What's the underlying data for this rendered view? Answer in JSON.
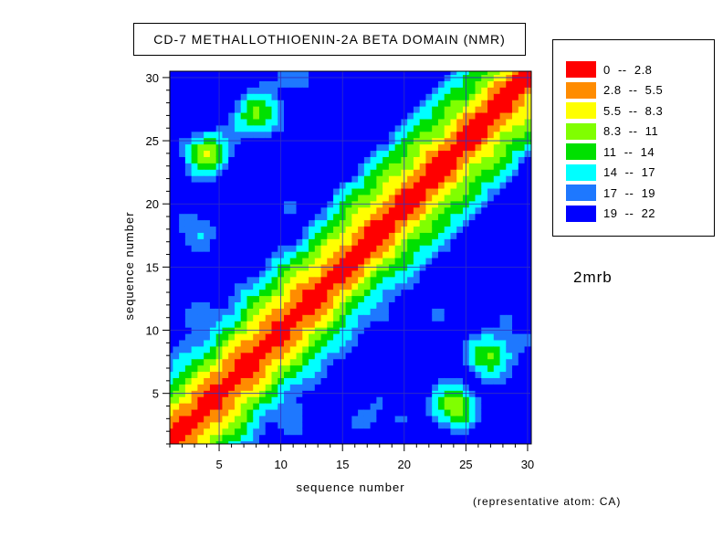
{
  "chart_data": {
    "type": "heatmap",
    "title": "CD-7 METHALLOTHIOENIN-2A BETA DOMAIN (NMR)",
    "xlabel": "sequence number",
    "ylabel": "sequence number",
    "xlim": [
      1,
      30
    ],
    "ylim": [
      1,
      30
    ],
    "xticks": [
      5,
      10,
      15,
      20,
      25,
      30
    ],
    "yticks": [
      5,
      10,
      15,
      20,
      25,
      30
    ],
    "grid": true,
    "legend_placement": "right",
    "levels": [
      {
        "label": "0  --  2.8",
        "min": 0,
        "max": 2.8,
        "color": "#ff0000"
      },
      {
        "label": "2.8  --  5.5",
        "min": 2.8,
        "max": 5.5,
        "color": "#ff8c00"
      },
      {
        "label": "5.5  --  8.3",
        "min": 5.5,
        "max": 8.3,
        "color": "#ffff00"
      },
      {
        "label": "8.3  --  11",
        "min": 8.3,
        "max": 11,
        "color": "#80ff00"
      },
      {
        "label": "11  --  14",
        "min": 11,
        "max": 14,
        "color": "#00e000"
      },
      {
        "label": "14  --  17",
        "min": 14,
        "max": 17,
        "color": "#00ffff"
      },
      {
        "label": "17  --  19",
        "min": 17,
        "max": 19,
        "color": "#1e78ff"
      },
      {
        "label": "19  --  22",
        "min": 19,
        "max": 22,
        "color": "#0000ff"
      }
    ],
    "wells": [
      {
        "x": 11,
        "y": 23,
        "value": 19.5
      },
      {
        "x": 11,
        "y": 19,
        "value": 19.5
      },
      {
        "x": 23,
        "y": 11,
        "value": 19.5
      },
      {
        "x": 19,
        "y": 11,
        "value": 19.5
      },
      {
        "x": 11,
        "y": 3,
        "value": 18
      },
      {
        "x": 3,
        "y": 11,
        "value": 18
      },
      {
        "x": 1,
        "y": 29,
        "value": 19.5
      },
      {
        "x": 29,
        "y": 1,
        "value": 19.5
      },
      {
        "x": 18,
        "y": 3,
        "value": 17
      },
      {
        "x": 3,
        "y": 18,
        "value": 17
      },
      {
        "x": 30,
        "y": 11,
        "value": 18
      },
      {
        "x": 11,
        "y": 30,
        "value": 17
      }
    ],
    "peaks": [
      {
        "x": 4,
        "y": 24,
        "value": 5
      },
      {
        "x": 24,
        "y": 4,
        "value": 5
      },
      {
        "x": 27,
        "y": 8,
        "value": 7.5
      },
      {
        "x": 8,
        "y": 27,
        "value": 7.5
      }
    ]
  },
  "annotations": {
    "side_label": "2mrb",
    "atom_label": "(representative atom: CA)"
  }
}
